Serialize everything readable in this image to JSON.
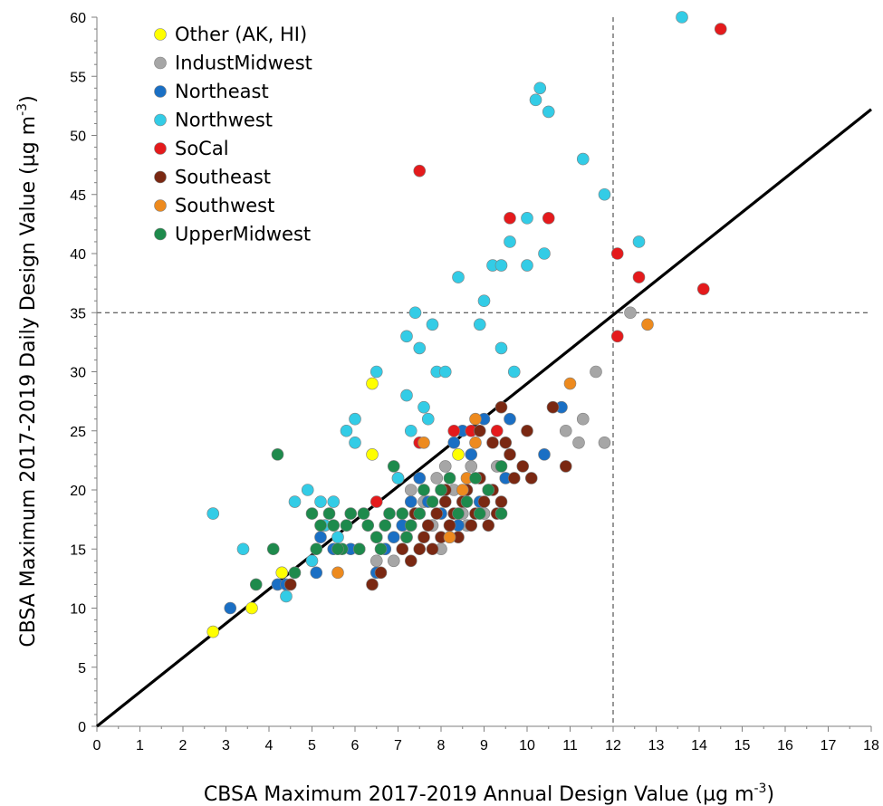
{
  "chart_data": {
    "type": "scatter",
    "title": "",
    "xlabel": "CBSA Maximum 2017-2019 Annual Design Value (µg m",
    "xlabel_sup": "-3",
    "xlabel_end": ")",
    "ylabel": "CBSA Maximum 2017-2019 Daily Design Value (µg m",
    "ylabel_sup": "-3",
    "ylabel_end": ")",
    "xlim": [
      0,
      18
    ],
    "ylim": [
      0,
      60
    ],
    "xticks": [
      "0",
      "1",
      "2",
      "3",
      "4",
      "5",
      "6",
      "7",
      "8",
      "9",
      "10",
      "11",
      "12",
      "13",
      "14",
      "15",
      "16",
      "17",
      "18"
    ],
    "yticks": [
      "0",
      "5",
      "10",
      "15",
      "20",
      "25",
      "30",
      "35",
      "40",
      "45",
      "50",
      "55",
      "60"
    ],
    "legend_position": "top-left",
    "reference_lines": {
      "vertical_x": 12,
      "horizontal_y": 35,
      "style": "dashed"
    },
    "fit_line": {
      "slope": 2.9,
      "intercept": 0
    },
    "series": [
      {
        "name": "Other (AK, HI)",
        "color": "#ffff00",
        "points": [
          [
            2.7,
            8
          ],
          [
            3.6,
            10
          ],
          [
            4.3,
            13
          ],
          [
            6.4,
            29
          ],
          [
            6.4,
            23
          ],
          [
            8.4,
            23
          ]
        ]
      },
      {
        "name": "IndustMidwest",
        "color": "#a6a6a6",
        "points": [
          [
            6.5,
            14
          ],
          [
            6.7,
            15
          ],
          [
            7.0,
            21
          ],
          [
            7.3,
            20
          ],
          [
            7.6,
            19
          ],
          [
            7.9,
            21
          ],
          [
            8.1,
            22
          ],
          [
            8.3,
            20
          ],
          [
            8.5,
            18
          ],
          [
            8.7,
            22
          ],
          [
            8.9,
            21
          ],
          [
            9.1,
            20
          ],
          [
            9.3,
            22
          ],
          [
            7.2,
            16
          ],
          [
            7.8,
            17
          ],
          [
            8.2,
            16
          ],
          [
            8.6,
            17
          ],
          [
            9.0,
            18
          ],
          [
            7.4,
            18
          ],
          [
            8.0,
            15
          ],
          [
            6.9,
            14
          ],
          [
            10.9,
            25
          ],
          [
            11.2,
            24
          ],
          [
            11.3,
            26
          ],
          [
            11.6,
            30
          ],
          [
            11.8,
            24
          ],
          [
            12.4,
            35
          ]
        ]
      },
      {
        "name": "Northeast",
        "color": "#1a6fc4",
        "points": [
          [
            3.1,
            10
          ],
          [
            4.2,
            12
          ],
          [
            4.4,
            12
          ],
          [
            5.1,
            13
          ],
          [
            5.2,
            16
          ],
          [
            5.5,
            15
          ],
          [
            5.9,
            15
          ],
          [
            6.1,
            15
          ],
          [
            6.5,
            13
          ],
          [
            6.7,
            15
          ],
          [
            6.9,
            16
          ],
          [
            7.1,
            17
          ],
          [
            7.3,
            19
          ],
          [
            7.5,
            21
          ],
          [
            7.7,
            19
          ],
          [
            8.0,
            18
          ],
          [
            8.3,
            24
          ],
          [
            8.5,
            25
          ],
          [
            8.7,
            23
          ],
          [
            8.9,
            19
          ],
          [
            9.0,
            26
          ],
          [
            9.6,
            26
          ],
          [
            10.8,
            27
          ],
          [
            10.4,
            23
          ],
          [
            9.5,
            21
          ],
          [
            8.4,
            17
          ]
        ]
      },
      {
        "name": "Northwest",
        "color": "#33cce6",
        "points": [
          [
            2.7,
            18
          ],
          [
            3.4,
            15
          ],
          [
            4.4,
            11
          ],
          [
            4.6,
            19
          ],
          [
            4.9,
            20
          ],
          [
            5.2,
            19
          ],
          [
            5.3,
            17
          ],
          [
            5.5,
            19
          ],
          [
            5.8,
            25
          ],
          [
            6.0,
            26
          ],
          [
            6.0,
            24
          ],
          [
            6.5,
            16
          ],
          [
            6.5,
            30
          ],
          [
            7.0,
            21
          ],
          [
            7.2,
            33
          ],
          [
            7.2,
            28
          ],
          [
            7.3,
            25
          ],
          [
            7.4,
            35
          ],
          [
            7.5,
            32
          ],
          [
            7.6,
            27
          ],
          [
            7.7,
            26
          ],
          [
            7.8,
            34
          ],
          [
            7.9,
            30
          ],
          [
            8.1,
            30
          ],
          [
            8.4,
            38
          ],
          [
            8.9,
            34
          ],
          [
            9.0,
            36
          ],
          [
            9.2,
            39
          ],
          [
            9.4,
            39
          ],
          [
            9.4,
            32
          ],
          [
            9.6,
            41
          ],
          [
            9.7,
            30
          ],
          [
            10.0,
            43
          ],
          [
            10.0,
            39
          ],
          [
            10.2,
            53
          ],
          [
            10.3,
            54
          ],
          [
            10.4,
            40
          ],
          [
            10.5,
            52
          ],
          [
            11.3,
            48
          ],
          [
            11.8,
            45
          ],
          [
            12.6,
            41
          ],
          [
            13.6,
            60
          ],
          [
            5.0,
            14
          ],
          [
            5.6,
            16
          ]
        ]
      },
      {
        "name": "SoCal",
        "color": "#e41a1c",
        "points": [
          [
            6.5,
            19
          ],
          [
            7.5,
            24
          ],
          [
            7.5,
            47
          ],
          [
            8.3,
            25
          ],
          [
            8.7,
            25
          ],
          [
            9.3,
            25
          ],
          [
            9.6,
            43
          ],
          [
            10.5,
            43
          ],
          [
            12.1,
            40
          ],
          [
            12.1,
            33
          ],
          [
            12.6,
            38
          ],
          [
            14.1,
            37
          ],
          [
            14.5,
            59
          ]
        ]
      },
      {
        "name": "Southeast",
        "color": "#7a2812",
        "points": [
          [
            4.5,
            12
          ],
          [
            6.4,
            12
          ],
          [
            6.6,
            13
          ],
          [
            7.1,
            15
          ],
          [
            7.3,
            14
          ],
          [
            7.5,
            15
          ],
          [
            7.6,
            16
          ],
          [
            7.7,
            17
          ],
          [
            7.8,
            15
          ],
          [
            7.9,
            18
          ],
          [
            8.0,
            16
          ],
          [
            8.1,
            19
          ],
          [
            8.2,
            17
          ],
          [
            8.3,
            18
          ],
          [
            8.4,
            16
          ],
          [
            8.5,
            19
          ],
          [
            8.6,
            20
          ],
          [
            8.7,
            17
          ],
          [
            8.8,
            18
          ],
          [
            8.9,
            21
          ],
          [
            9.0,
            19
          ],
          [
            9.1,
            17
          ],
          [
            9.2,
            20
          ],
          [
            9.3,
            18
          ],
          [
            9.4,
            19
          ],
          [
            9.5,
            24
          ],
          [
            9.6,
            23
          ],
          [
            9.7,
            21
          ],
          [
            9.9,
            22
          ],
          [
            10.0,
            25
          ],
          [
            10.1,
            21
          ],
          [
            10.6,
            27
          ],
          [
            10.9,
            22
          ],
          [
            9.4,
            27
          ],
          [
            9.2,
            24
          ],
          [
            8.9,
            25
          ],
          [
            7.4,
            18
          ],
          [
            8.1,
            20
          ]
        ]
      },
      {
        "name": "Southwest",
        "color": "#ed8a1e",
        "points": [
          [
            5.6,
            13
          ],
          [
            7.6,
            24
          ],
          [
            8.2,
            16
          ],
          [
            8.5,
            20
          ],
          [
            8.8,
            26
          ],
          [
            8.8,
            24
          ],
          [
            11.0,
            29
          ],
          [
            12.8,
            34
          ],
          [
            8.6,
            21
          ]
        ]
      },
      {
        "name": "UpperMidwest",
        "color": "#1e8a4c",
        "points": [
          [
            3.7,
            12
          ],
          [
            4.1,
            15
          ],
          [
            4.2,
            23
          ],
          [
            4.6,
            13
          ],
          [
            5.0,
            18
          ],
          [
            5.1,
            15
          ],
          [
            5.2,
            17
          ],
          [
            5.4,
            18
          ],
          [
            5.5,
            17
          ],
          [
            5.7,
            15
          ],
          [
            5.8,
            17
          ],
          [
            5.9,
            18
          ],
          [
            6.1,
            15
          ],
          [
            6.2,
            18
          ],
          [
            6.3,
            17
          ],
          [
            6.5,
            16
          ],
          [
            6.7,
            17
          ],
          [
            6.8,
            18
          ],
          [
            6.9,
            22
          ],
          [
            7.1,
            18
          ],
          [
            7.2,
            16
          ],
          [
            7.3,
            17
          ],
          [
            7.5,
            18
          ],
          [
            7.6,
            20
          ],
          [
            7.8,
            19
          ],
          [
            8.0,
            20
          ],
          [
            8.2,
            21
          ],
          [
            8.4,
            18
          ],
          [
            8.6,
            19
          ],
          [
            8.8,
            21
          ],
          [
            9.1,
            20
          ],
          [
            9.4,
            22
          ],
          [
            9.4,
            18
          ],
          [
            5.6,
            15
          ],
          [
            6.6,
            15
          ],
          [
            8.9,
            18
          ]
        ]
      }
    ]
  }
}
